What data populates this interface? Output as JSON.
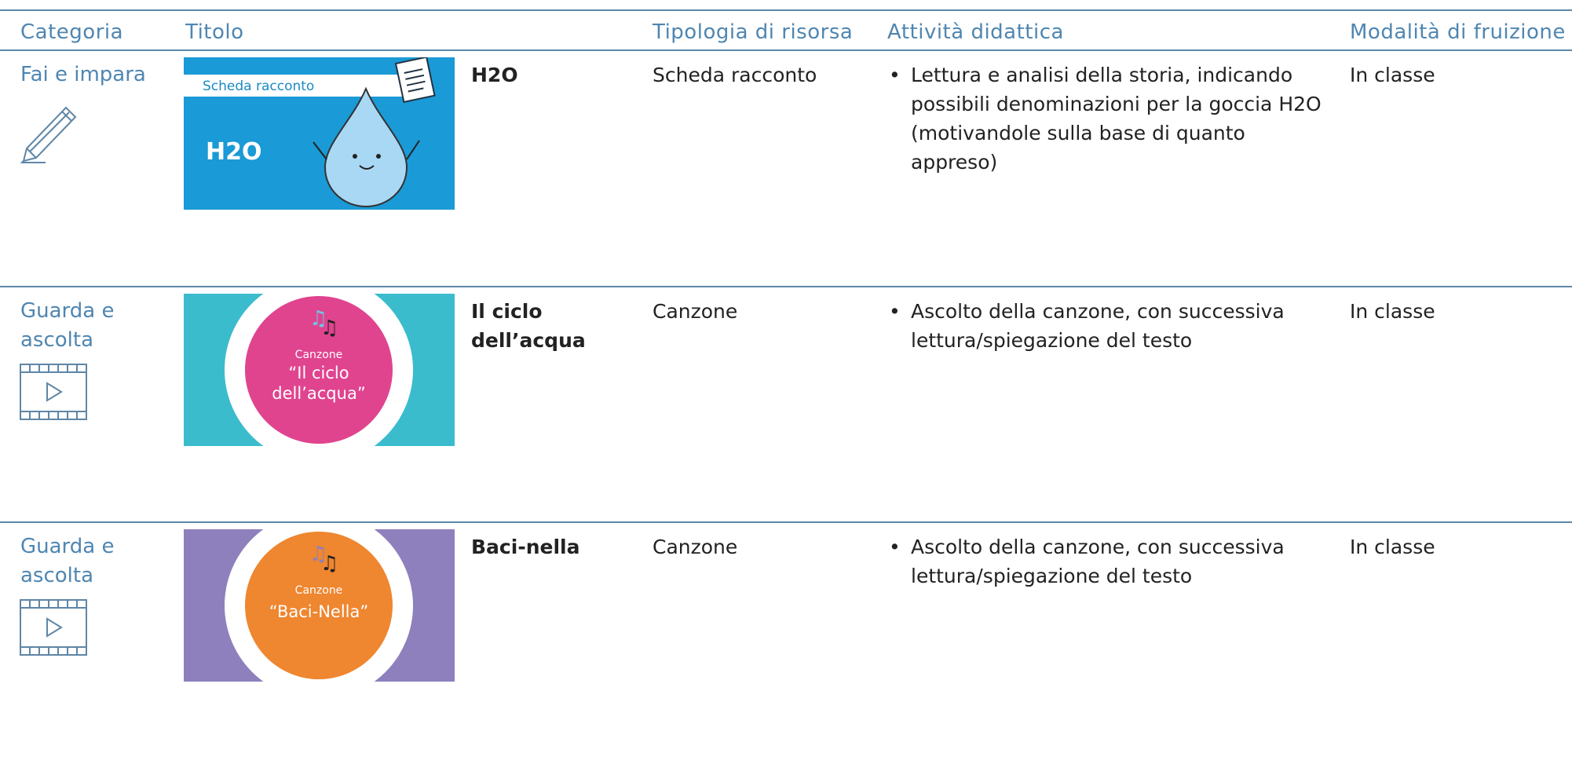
{
  "header": {
    "columns": [
      "Categoria",
      "Titolo",
      "Tipologia di risorsa",
      "Attività didattica",
      "Modalità di fruizione"
    ]
  },
  "rows": [
    {
      "category": "Fai e impara",
      "thumbnail": {
        "label": "Scheda racconto",
        "caption": "H2O"
      },
      "title": "H2O",
      "type": "Scheda racconto",
      "activity": "Lettura e analisi della storia, indicando possibili denominazioni per la goccia H2O (motivandole sulla base di quanto appreso)",
      "mode": "In classe"
    },
    {
      "category": "Guarda e ascolta",
      "thumbnail": {
        "label": "Canzone",
        "caption": "“Il ciclo dell’acqua”"
      },
      "title": "Il ciclo dell’acqua",
      "type": "Canzone",
      "activity": "Ascolto della canzone, con successiva lettura/spiegazione del testo",
      "mode": "In classe"
    },
    {
      "category": "Guarda e ascolta",
      "thumbnail": {
        "label": "Canzone",
        "caption": "“Baci-Nella”"
      },
      "title": "Baci-nella",
      "type": "Canzone",
      "activity": "Ascolto della canzone, con successiva lettura/spiegazione del testo",
      "mode": "In classe"
    }
  ]
}
